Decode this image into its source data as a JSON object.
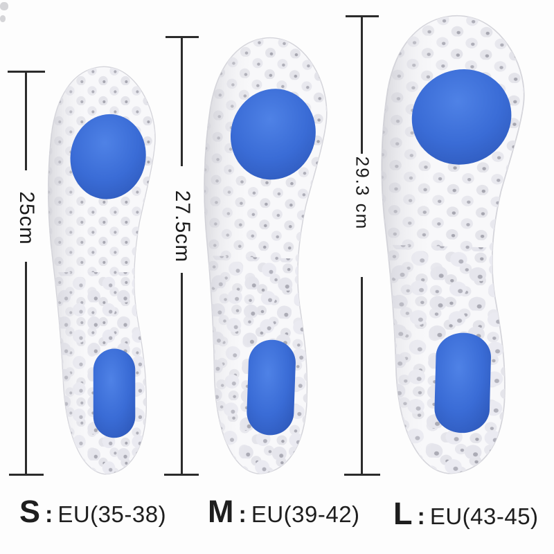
{
  "measurements": [
    {
      "length": "25cm"
    },
    {
      "length": "27.5cm"
    },
    {
      "length": "29.3 cm"
    }
  ],
  "sizes": [
    {
      "letter": "S",
      "separator": ":",
      "eu_range": "EU(35-38)"
    },
    {
      "letter": "M",
      "separator": ":",
      "eu_range": "EU(39-42)"
    },
    {
      "letter": "L",
      "separator": ":",
      "eu_range": "EU(43-45)"
    }
  ],
  "colors": {
    "cushion_blue": "#3a6cd6",
    "foam_white": "#f8f8fa",
    "texture_gray": "#e5e5eb",
    "speckle_gray": "#aaaab4",
    "annotation_dark": "#2b2b2b"
  }
}
